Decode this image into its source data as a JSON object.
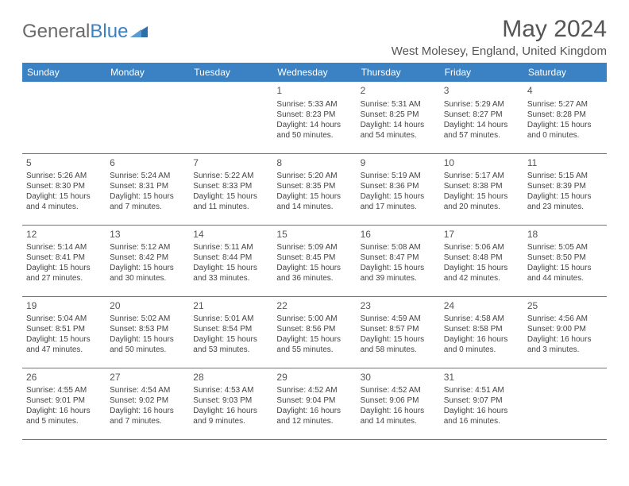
{
  "logo": {
    "part1": "General",
    "part2": "Blue"
  },
  "title": "May 2024",
  "location": "West Molesey, England, United Kingdom",
  "colors": {
    "header_bg": "#3b82c4",
    "header_text": "#ffffff",
    "border": "#3b82c4",
    "text": "#444444",
    "title_text": "#555555",
    "logo_gray": "#6b6b6b",
    "logo_blue": "#3b82c4",
    "background": "#ffffff"
  },
  "typography": {
    "title_fontsize": 30,
    "location_fontsize": 15,
    "dayheader_fontsize": 12,
    "daynum_fontsize": 12,
    "body_fontsize": 10
  },
  "day_headers": [
    "Sunday",
    "Monday",
    "Tuesday",
    "Wednesday",
    "Thursday",
    "Friday",
    "Saturday"
  ],
  "weeks": [
    [
      null,
      null,
      null,
      {
        "n": "1",
        "sr": "Sunrise: 5:33 AM",
        "ss": "Sunset: 8:23 PM",
        "dl1": "Daylight: 14 hours",
        "dl2": "and 50 minutes."
      },
      {
        "n": "2",
        "sr": "Sunrise: 5:31 AM",
        "ss": "Sunset: 8:25 PM",
        "dl1": "Daylight: 14 hours",
        "dl2": "and 54 minutes."
      },
      {
        "n": "3",
        "sr": "Sunrise: 5:29 AM",
        "ss": "Sunset: 8:27 PM",
        "dl1": "Daylight: 14 hours",
        "dl2": "and 57 minutes."
      },
      {
        "n": "4",
        "sr": "Sunrise: 5:27 AM",
        "ss": "Sunset: 8:28 PM",
        "dl1": "Daylight: 15 hours",
        "dl2": "and 0 minutes."
      }
    ],
    [
      {
        "n": "5",
        "sr": "Sunrise: 5:26 AM",
        "ss": "Sunset: 8:30 PM",
        "dl1": "Daylight: 15 hours",
        "dl2": "and 4 minutes."
      },
      {
        "n": "6",
        "sr": "Sunrise: 5:24 AM",
        "ss": "Sunset: 8:31 PM",
        "dl1": "Daylight: 15 hours",
        "dl2": "and 7 minutes."
      },
      {
        "n": "7",
        "sr": "Sunrise: 5:22 AM",
        "ss": "Sunset: 8:33 PM",
        "dl1": "Daylight: 15 hours",
        "dl2": "and 11 minutes."
      },
      {
        "n": "8",
        "sr": "Sunrise: 5:20 AM",
        "ss": "Sunset: 8:35 PM",
        "dl1": "Daylight: 15 hours",
        "dl2": "and 14 minutes."
      },
      {
        "n": "9",
        "sr": "Sunrise: 5:19 AM",
        "ss": "Sunset: 8:36 PM",
        "dl1": "Daylight: 15 hours",
        "dl2": "and 17 minutes."
      },
      {
        "n": "10",
        "sr": "Sunrise: 5:17 AM",
        "ss": "Sunset: 8:38 PM",
        "dl1": "Daylight: 15 hours",
        "dl2": "and 20 minutes."
      },
      {
        "n": "11",
        "sr": "Sunrise: 5:15 AM",
        "ss": "Sunset: 8:39 PM",
        "dl1": "Daylight: 15 hours",
        "dl2": "and 23 minutes."
      }
    ],
    [
      {
        "n": "12",
        "sr": "Sunrise: 5:14 AM",
        "ss": "Sunset: 8:41 PM",
        "dl1": "Daylight: 15 hours",
        "dl2": "and 27 minutes."
      },
      {
        "n": "13",
        "sr": "Sunrise: 5:12 AM",
        "ss": "Sunset: 8:42 PM",
        "dl1": "Daylight: 15 hours",
        "dl2": "and 30 minutes."
      },
      {
        "n": "14",
        "sr": "Sunrise: 5:11 AM",
        "ss": "Sunset: 8:44 PM",
        "dl1": "Daylight: 15 hours",
        "dl2": "and 33 minutes."
      },
      {
        "n": "15",
        "sr": "Sunrise: 5:09 AM",
        "ss": "Sunset: 8:45 PM",
        "dl1": "Daylight: 15 hours",
        "dl2": "and 36 minutes."
      },
      {
        "n": "16",
        "sr": "Sunrise: 5:08 AM",
        "ss": "Sunset: 8:47 PM",
        "dl1": "Daylight: 15 hours",
        "dl2": "and 39 minutes."
      },
      {
        "n": "17",
        "sr": "Sunrise: 5:06 AM",
        "ss": "Sunset: 8:48 PM",
        "dl1": "Daylight: 15 hours",
        "dl2": "and 42 minutes."
      },
      {
        "n": "18",
        "sr": "Sunrise: 5:05 AM",
        "ss": "Sunset: 8:50 PM",
        "dl1": "Daylight: 15 hours",
        "dl2": "and 44 minutes."
      }
    ],
    [
      {
        "n": "19",
        "sr": "Sunrise: 5:04 AM",
        "ss": "Sunset: 8:51 PM",
        "dl1": "Daylight: 15 hours",
        "dl2": "and 47 minutes."
      },
      {
        "n": "20",
        "sr": "Sunrise: 5:02 AM",
        "ss": "Sunset: 8:53 PM",
        "dl1": "Daylight: 15 hours",
        "dl2": "and 50 minutes."
      },
      {
        "n": "21",
        "sr": "Sunrise: 5:01 AM",
        "ss": "Sunset: 8:54 PM",
        "dl1": "Daylight: 15 hours",
        "dl2": "and 53 minutes."
      },
      {
        "n": "22",
        "sr": "Sunrise: 5:00 AM",
        "ss": "Sunset: 8:56 PM",
        "dl1": "Daylight: 15 hours",
        "dl2": "and 55 minutes."
      },
      {
        "n": "23",
        "sr": "Sunrise: 4:59 AM",
        "ss": "Sunset: 8:57 PM",
        "dl1": "Daylight: 15 hours",
        "dl2": "and 58 minutes."
      },
      {
        "n": "24",
        "sr": "Sunrise: 4:58 AM",
        "ss": "Sunset: 8:58 PM",
        "dl1": "Daylight: 16 hours",
        "dl2": "and 0 minutes."
      },
      {
        "n": "25",
        "sr": "Sunrise: 4:56 AM",
        "ss": "Sunset: 9:00 PM",
        "dl1": "Daylight: 16 hours",
        "dl2": "and 3 minutes."
      }
    ],
    [
      {
        "n": "26",
        "sr": "Sunrise: 4:55 AM",
        "ss": "Sunset: 9:01 PM",
        "dl1": "Daylight: 16 hours",
        "dl2": "and 5 minutes."
      },
      {
        "n": "27",
        "sr": "Sunrise: 4:54 AM",
        "ss": "Sunset: 9:02 PM",
        "dl1": "Daylight: 16 hours",
        "dl2": "and 7 minutes."
      },
      {
        "n": "28",
        "sr": "Sunrise: 4:53 AM",
        "ss": "Sunset: 9:03 PM",
        "dl1": "Daylight: 16 hours",
        "dl2": "and 9 minutes."
      },
      {
        "n": "29",
        "sr": "Sunrise: 4:52 AM",
        "ss": "Sunset: 9:04 PM",
        "dl1": "Daylight: 16 hours",
        "dl2": "and 12 minutes."
      },
      {
        "n": "30",
        "sr": "Sunrise: 4:52 AM",
        "ss": "Sunset: 9:06 PM",
        "dl1": "Daylight: 16 hours",
        "dl2": "and 14 minutes."
      },
      {
        "n": "31",
        "sr": "Sunrise: 4:51 AM",
        "ss": "Sunset: 9:07 PM",
        "dl1": "Daylight: 16 hours",
        "dl2": "and 16 minutes."
      },
      null
    ]
  ]
}
